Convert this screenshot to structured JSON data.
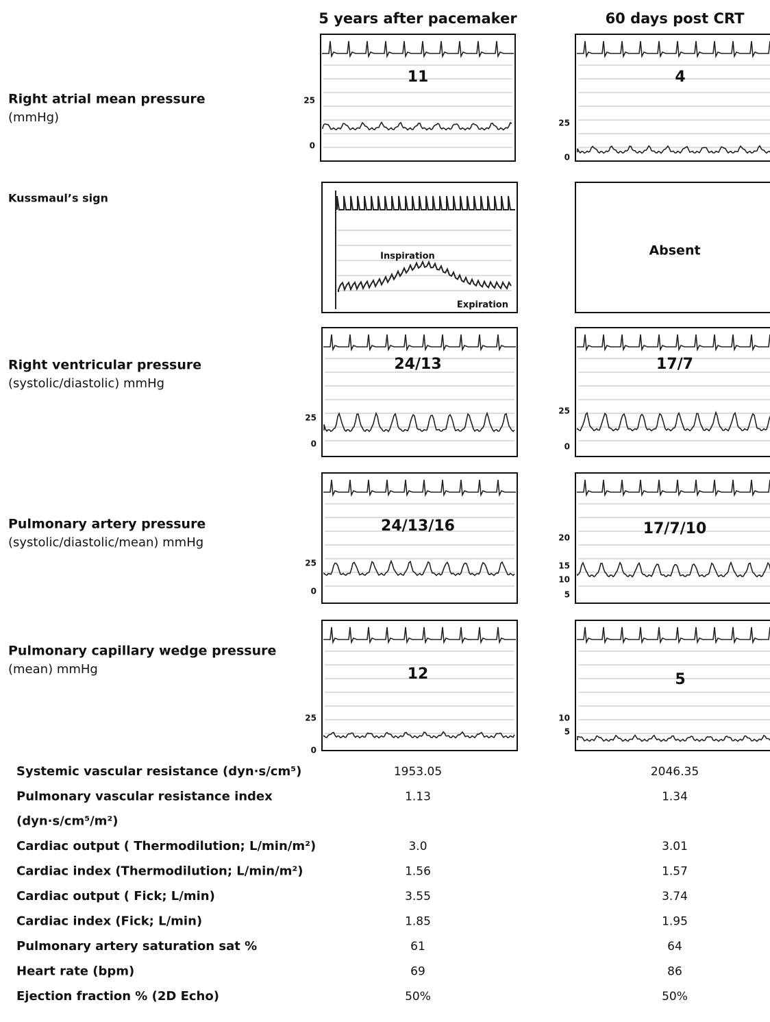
{
  "columns": [
    "5 years after pacemaker",
    "60 days post CRT"
  ],
  "rows": [
    {
      "label": "Right atrial mean pressure",
      "sublabel": "(mmHg)",
      "panels": [
        {
          "value": "11",
          "ticks": [
            "25",
            "0"
          ]
        },
        {
          "value": "4",
          "ticks": [
            "25",
            "0"
          ]
        }
      ]
    },
    {
      "label": "Kussmaul’s sign",
      "panels": [
        {
          "annotations": [
            "Inspiration",
            "Expiration"
          ]
        },
        {
          "value": "Absent"
        }
      ]
    },
    {
      "label": "Right ventricular pressure",
      "sublabel": "(systolic/diastolic) mmHg",
      "panels": [
        {
          "value": "24/13",
          "ticks": [
            "25",
            "0"
          ]
        },
        {
          "value": "17/7",
          "ticks": [
            "25",
            "0"
          ]
        }
      ]
    },
    {
      "label": "Pulmonary artery pressure",
      "sublabel": "(systolic/diastolic/mean) mmHg",
      "panels": [
        {
          "value": "24/13/16",
          "ticks": [
            "25",
            "0"
          ]
        },
        {
          "value": "17/7/10",
          "ticks": [
            "20",
            "15",
            "10",
            "5"
          ]
        }
      ]
    },
    {
      "label": "Pulmonary capillary wedge pressure",
      "sublabel": "(mean) mmHg",
      "panels": [
        {
          "value": "12",
          "ticks": [
            "25",
            "0"
          ]
        },
        {
          "value": "5",
          "ticks": [
            "10",
            "5"
          ]
        }
      ]
    }
  ],
  "table": {
    "rows": [
      {
        "label": "Systemic vascular resistance (dyn·s/cm⁵)",
        "values": [
          "1953.05",
          "2046.35"
        ]
      },
      {
        "label": "Pulmonary vascular resistance index",
        "label2": "(dyn·s/cm⁵/m²)",
        "values": [
          "1.13",
          "1.34"
        ]
      },
      {
        "label": "Cardiac output ( Thermodilution; L/min/m²)",
        "values": [
          "3.0",
          "3.01"
        ]
      },
      {
        "label": "Cardiac index (Thermodilution; L/min/m²)",
        "values": [
          "1.56",
          "1.57"
        ]
      },
      {
        "label": "Cardiac output ( Fick; L/min)",
        "values": [
          "3.55",
          "3.74"
        ]
      },
      {
        "label": "Cardiac index (Fick; L/min)",
        "values": [
          "1.85",
          "1.95"
        ]
      },
      {
        "label": "Pulmonary artery saturation sat %",
        "values": [
          "61",
          "64"
        ]
      },
      {
        "label": "Heart rate (bpm)",
        "values": [
          "69",
          "86"
        ]
      },
      {
        "label": "Ejection fraction  % (2D Echo)",
        "values": [
          "50%",
          "50%"
        ]
      }
    ]
  }
}
